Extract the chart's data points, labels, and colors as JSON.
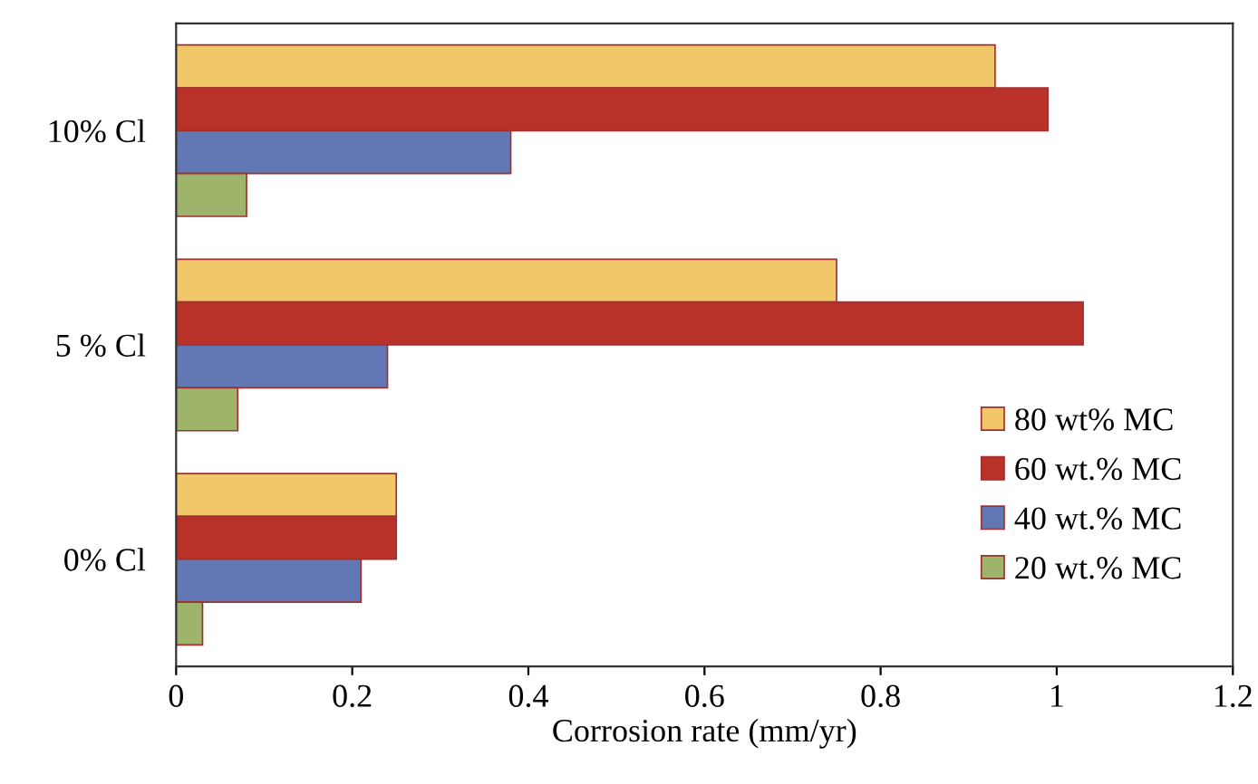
{
  "chart_data": {
    "type": "bar",
    "orientation": "horizontal",
    "xlabel": "Corrosion rate (mm/yr)",
    "categories": [
      "10% Cl",
      "5 % Cl",
      "0% Cl"
    ],
    "series": [
      {
        "name": "80 wt% MC",
        "color": "#f2c76a",
        "values": [
          0.93,
          0.75,
          0.25
        ]
      },
      {
        "name": "60 wt.% MC",
        "color": "#b8322a",
        "values": [
          0.99,
          1.03,
          0.25
        ]
      },
      {
        "name": "40 wt.% MC",
        "color": "#6278b4",
        "values": [
          0.38,
          0.24,
          0.21
        ]
      },
      {
        "name": "20 wt.% MC",
        "color": "#9db46a",
        "values": [
          0.08,
          0.07,
          0.03
        ]
      }
    ],
    "xlim": [
      0,
      1.2
    ],
    "xticks": [
      0,
      0.2,
      0.4,
      0.6,
      0.8,
      1,
      1.2
    ],
    "grid": false,
    "legend": "bottom right"
  }
}
